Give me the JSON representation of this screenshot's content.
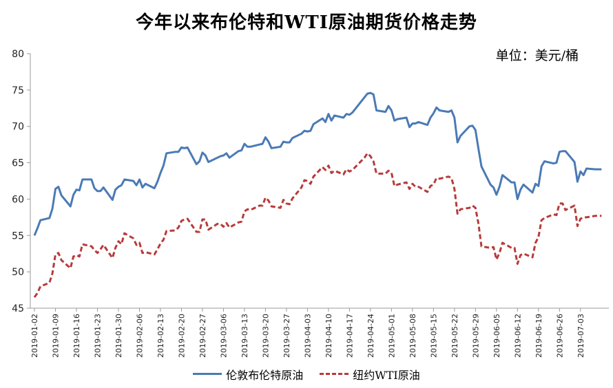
{
  "chart_data": {
    "type": "line",
    "title": "今年以来布伦特和WTI原油期货价格走势",
    "unit": "单位：美元/桶",
    "ylim": [
      45,
      80
    ],
    "yticks": [
      45,
      50,
      55,
      60,
      65,
      70,
      75,
      80
    ],
    "xlim": [
      "2019-01-02",
      "2019-07-12"
    ],
    "xticks": [
      "2019-01-02",
      "2019-01-09",
      "2019-01-16",
      "2019-01-23",
      "2019-01-30",
      "2019-02-06",
      "2019-02-13",
      "2019-02-20",
      "2019-02-27",
      "2019-03-06",
      "2019-03-13",
      "2019-03-20",
      "2019-03-27",
      "2019-04-03",
      "2019-04-10",
      "2019-04-17",
      "2019-04-24",
      "2019-05-01",
      "2019-05-08",
      "2019-05-15",
      "2019-05-22",
      "2019-05-29",
      "2019-06-05",
      "2019-06-12",
      "2019-06-19",
      "2019-06-26",
      "2019-07-03"
    ],
    "grid": false,
    "legend": "bottom",
    "series": [
      {
        "name": "伦敦布伦特原油",
        "color": "#4a7ab5",
        "style": "solid",
        "points": [
          [
            "2019-01-02",
            55.0
          ],
          [
            "2019-01-03",
            56.0
          ],
          [
            "2019-01-04",
            57.1
          ],
          [
            "2019-01-07",
            57.4
          ],
          [
            "2019-01-08",
            58.7
          ],
          [
            "2019-01-09",
            61.4
          ],
          [
            "2019-01-10",
            61.7
          ],
          [
            "2019-01-11",
            60.5
          ],
          [
            "2019-01-14",
            59.0
          ],
          [
            "2019-01-15",
            60.6
          ],
          [
            "2019-01-16",
            61.3
          ],
          [
            "2019-01-17",
            61.2
          ],
          [
            "2019-01-18",
            62.7
          ],
          [
            "2019-01-21",
            62.7
          ],
          [
            "2019-01-22",
            61.5
          ],
          [
            "2019-01-23",
            61.1
          ],
          [
            "2019-01-24",
            61.1
          ],
          [
            "2019-01-25",
            61.6
          ],
          [
            "2019-01-28",
            59.9
          ],
          [
            "2019-01-29",
            61.3
          ],
          [
            "2019-01-30",
            61.7
          ],
          [
            "2019-01-31",
            61.9
          ],
          [
            "2019-02-01",
            62.7
          ],
          [
            "2019-02-04",
            62.5
          ],
          [
            "2019-02-05",
            61.9
          ],
          [
            "2019-02-06",
            62.7
          ],
          [
            "2019-02-07",
            61.6
          ],
          [
            "2019-02-08",
            62.1
          ],
          [
            "2019-02-11",
            61.5
          ],
          [
            "2019-02-12",
            62.4
          ],
          [
            "2019-02-13",
            63.6
          ],
          [
            "2019-02-14",
            64.6
          ],
          [
            "2019-02-15",
            66.3
          ],
          [
            "2019-02-18",
            66.5
          ],
          [
            "2019-02-19",
            66.5
          ],
          [
            "2019-02-20",
            67.1
          ],
          [
            "2019-02-21",
            67.0
          ],
          [
            "2019-02-22",
            67.1
          ],
          [
            "2019-02-25",
            64.8
          ],
          [
            "2019-02-26",
            65.2
          ],
          [
            "2019-02-27",
            66.4
          ],
          [
            "2019-02-28",
            66.0
          ],
          [
            "2019-03-01",
            65.1
          ],
          [
            "2019-03-04",
            65.7
          ],
          [
            "2019-03-05",
            65.9
          ],
          [
            "2019-03-06",
            66.0
          ],
          [
            "2019-03-07",
            66.3
          ],
          [
            "2019-03-08",
            65.7
          ],
          [
            "2019-03-11",
            66.6
          ],
          [
            "2019-03-12",
            66.7
          ],
          [
            "2019-03-13",
            67.6
          ],
          [
            "2019-03-14",
            67.2
          ],
          [
            "2019-03-15",
            67.2
          ],
          [
            "2019-03-18",
            67.5
          ],
          [
            "2019-03-19",
            67.6
          ],
          [
            "2019-03-20",
            68.5
          ],
          [
            "2019-03-21",
            67.9
          ],
          [
            "2019-03-22",
            67.0
          ],
          [
            "2019-03-25",
            67.2
          ],
          [
            "2019-03-26",
            67.9
          ],
          [
            "2019-03-27",
            67.8
          ],
          [
            "2019-03-28",
            67.8
          ],
          [
            "2019-03-29",
            68.4
          ],
          [
            "2019-04-01",
            69.0
          ],
          [
            "2019-04-02",
            69.4
          ],
          [
            "2019-04-03",
            69.3
          ],
          [
            "2019-04-04",
            69.4
          ],
          [
            "2019-04-05",
            70.3
          ],
          [
            "2019-04-08",
            71.1
          ],
          [
            "2019-04-09",
            70.6
          ],
          [
            "2019-04-10",
            71.7
          ],
          [
            "2019-04-11",
            70.8
          ],
          [
            "2019-04-12",
            71.5
          ],
          [
            "2019-04-15",
            71.2
          ],
          [
            "2019-04-16",
            71.7
          ],
          [
            "2019-04-17",
            71.6
          ],
          [
            "2019-04-18",
            71.9
          ],
          [
            "2019-04-22",
            74.0
          ],
          [
            "2019-04-23",
            74.5
          ],
          [
            "2019-04-24",
            74.6
          ],
          [
            "2019-04-25",
            74.4
          ],
          [
            "2019-04-26",
            72.2
          ],
          [
            "2019-04-29",
            72.0
          ],
          [
            "2019-04-30",
            72.8
          ],
          [
            "2019-05-01",
            72.2
          ],
          [
            "2019-05-02",
            70.8
          ],
          [
            "2019-05-03",
            71.0
          ],
          [
            "2019-05-06",
            71.2
          ],
          [
            "2019-05-07",
            69.9
          ],
          [
            "2019-05-08",
            70.4
          ],
          [
            "2019-05-09",
            70.4
          ],
          [
            "2019-05-10",
            70.6
          ],
          [
            "2019-05-13",
            70.2
          ],
          [
            "2019-05-14",
            71.2
          ],
          [
            "2019-05-15",
            71.8
          ],
          [
            "2019-05-16",
            72.6
          ],
          [
            "2019-05-17",
            72.2
          ],
          [
            "2019-05-20",
            72.0
          ],
          [
            "2019-05-21",
            72.2
          ],
          [
            "2019-05-22",
            71.2
          ],
          [
            "2019-05-23",
            67.8
          ],
          [
            "2019-05-24",
            68.7
          ],
          [
            "2019-05-27",
            70.0
          ],
          [
            "2019-05-28",
            70.1
          ],
          [
            "2019-05-29",
            69.5
          ],
          [
            "2019-05-30",
            66.9
          ],
          [
            "2019-05-31",
            64.5
          ],
          [
            "2019-06-03",
            62.0
          ],
          [
            "2019-06-04",
            61.6
          ],
          [
            "2019-06-05",
            60.6
          ],
          [
            "2019-06-06",
            61.7
          ],
          [
            "2019-06-07",
            63.3
          ],
          [
            "2019-06-10",
            62.3
          ],
          [
            "2019-06-11",
            62.3
          ],
          [
            "2019-06-12",
            60.0
          ],
          [
            "2019-06-13",
            61.3
          ],
          [
            "2019-06-14",
            62.0
          ],
          [
            "2019-06-17",
            60.9
          ],
          [
            "2019-06-18",
            62.1
          ],
          [
            "2019-06-19",
            61.8
          ],
          [
            "2019-06-20",
            64.5
          ],
          [
            "2019-06-21",
            65.2
          ],
          [
            "2019-06-24",
            64.9
          ],
          [
            "2019-06-25",
            65.0
          ],
          [
            "2019-06-26",
            66.5
          ],
          [
            "2019-06-27",
            66.6
          ],
          [
            "2019-06-28",
            66.6
          ],
          [
            "2019-07-01",
            65.1
          ],
          [
            "2019-07-02",
            62.4
          ],
          [
            "2019-07-03",
            63.8
          ],
          [
            "2019-07-04",
            63.3
          ],
          [
            "2019-07-05",
            64.2
          ],
          [
            "2019-07-08",
            64.1
          ],
          [
            "2019-07-10",
            64.1
          ]
        ]
      },
      {
        "name": "纽约WTI原油",
        "color": "#b83a3a",
        "style": "dashed",
        "points": [
          [
            "2019-01-02",
            46.5
          ],
          [
            "2019-01-03",
            47.1
          ],
          [
            "2019-01-04",
            48.0
          ],
          [
            "2019-01-07",
            48.5
          ],
          [
            "2019-01-08",
            49.8
          ],
          [
            "2019-01-09",
            52.4
          ],
          [
            "2019-01-10",
            52.6
          ],
          [
            "2019-01-11",
            51.6
          ],
          [
            "2019-01-14",
            50.5
          ],
          [
            "2019-01-15",
            52.1
          ],
          [
            "2019-01-16",
            52.3
          ],
          [
            "2019-01-17",
            52.1
          ],
          [
            "2019-01-18",
            53.8
          ],
          [
            "2019-01-21",
            53.5
          ],
          [
            "2019-01-22",
            53.0
          ],
          [
            "2019-01-23",
            52.6
          ],
          [
            "2019-01-24",
            53.1
          ],
          [
            "2019-01-25",
            53.7
          ],
          [
            "2019-01-28",
            51.9
          ],
          [
            "2019-01-29",
            53.3
          ],
          [
            "2019-01-30",
            54.2
          ],
          [
            "2019-01-31",
            53.8
          ],
          [
            "2019-02-01",
            55.3
          ],
          [
            "2019-02-04",
            54.6
          ],
          [
            "2019-02-05",
            53.7
          ],
          [
            "2019-02-06",
            54.0
          ],
          [
            "2019-02-07",
            52.6
          ],
          [
            "2019-02-08",
            52.7
          ],
          [
            "2019-02-11",
            52.4
          ],
          [
            "2019-02-12",
            53.1
          ],
          [
            "2019-02-13",
            53.9
          ],
          [
            "2019-02-14",
            54.4
          ],
          [
            "2019-02-15",
            55.6
          ],
          [
            "2019-02-18",
            55.7
          ],
          [
            "2019-02-19",
            56.1
          ],
          [
            "2019-02-20",
            57.0
          ],
          [
            "2019-02-21",
            57.2
          ],
          [
            "2019-02-22",
            57.3
          ],
          [
            "2019-02-25",
            55.5
          ],
          [
            "2019-02-26",
            55.5
          ],
          [
            "2019-02-27",
            57.2
          ],
          [
            "2019-02-28",
            57.2
          ],
          [
            "2019-03-01",
            55.8
          ],
          [
            "2019-03-04",
            56.6
          ],
          [
            "2019-03-05",
            56.6
          ],
          [
            "2019-03-06",
            56.2
          ],
          [
            "2019-03-07",
            56.7
          ],
          [
            "2019-03-08",
            56.1
          ],
          [
            "2019-03-11",
            56.8
          ],
          [
            "2019-03-12",
            56.9
          ],
          [
            "2019-03-13",
            58.3
          ],
          [
            "2019-03-14",
            58.6
          ],
          [
            "2019-03-15",
            58.5
          ],
          [
            "2019-03-18",
            59.1
          ],
          [
            "2019-03-19",
            59.1
          ],
          [
            "2019-03-20",
            60.2
          ],
          [
            "2019-03-21",
            59.8
          ],
          [
            "2019-03-22",
            59.0
          ],
          [
            "2019-03-25",
            58.8
          ],
          [
            "2019-03-26",
            59.9
          ],
          [
            "2019-03-27",
            59.4
          ],
          [
            "2019-03-28",
            59.3
          ],
          [
            "2019-03-29",
            60.1
          ],
          [
            "2019-04-01",
            61.6
          ],
          [
            "2019-04-02",
            62.6
          ],
          [
            "2019-04-03",
            62.5
          ],
          [
            "2019-04-04",
            62.1
          ],
          [
            "2019-04-05",
            63.1
          ],
          [
            "2019-04-08",
            64.4
          ],
          [
            "2019-04-09",
            64.0
          ],
          [
            "2019-04-10",
            64.6
          ],
          [
            "2019-04-11",
            63.6
          ],
          [
            "2019-04-12",
            63.9
          ],
          [
            "2019-04-15",
            63.4
          ],
          [
            "2019-04-16",
            64.1
          ],
          [
            "2019-04-17",
            63.8
          ],
          [
            "2019-04-18",
            64.0
          ],
          [
            "2019-04-22",
            65.7
          ],
          [
            "2019-04-23",
            66.3
          ],
          [
            "2019-04-24",
            65.9
          ],
          [
            "2019-04-25",
            65.2
          ],
          [
            "2019-04-26",
            63.5
          ],
          [
            "2019-04-29",
            63.5
          ],
          [
            "2019-04-30",
            63.9
          ],
          [
            "2019-05-01",
            63.6
          ],
          [
            "2019-05-02",
            61.8
          ],
          [
            "2019-05-03",
            62.0
          ],
          [
            "2019-05-06",
            62.3
          ],
          [
            "2019-05-07",
            61.4
          ],
          [
            "2019-05-08",
            62.1
          ],
          [
            "2019-05-09",
            61.7
          ],
          [
            "2019-05-10",
            61.7
          ],
          [
            "2019-05-13",
            61.0
          ],
          [
            "2019-05-14",
            61.8
          ],
          [
            "2019-05-15",
            62.0
          ],
          [
            "2019-05-16",
            62.9
          ],
          [
            "2019-05-17",
            62.8
          ],
          [
            "2019-05-20",
            63.1
          ],
          [
            "2019-05-21",
            62.9
          ],
          [
            "2019-05-22",
            61.4
          ],
          [
            "2019-05-23",
            58.0
          ],
          [
            "2019-05-24",
            58.6
          ],
          [
            "2019-05-27",
            58.8
          ],
          [
            "2019-05-28",
            59.1
          ],
          [
            "2019-05-29",
            58.8
          ],
          [
            "2019-05-30",
            56.6
          ],
          [
            "2019-05-31",
            53.5
          ],
          [
            "2019-06-03",
            53.3
          ],
          [
            "2019-06-04",
            53.4
          ],
          [
            "2019-06-05",
            51.7
          ],
          [
            "2019-06-06",
            52.6
          ],
          [
            "2019-06-07",
            54.0
          ],
          [
            "2019-06-10",
            53.3
          ],
          [
            "2019-06-11",
            53.3
          ],
          [
            "2019-06-12",
            51.1
          ],
          [
            "2019-06-13",
            52.3
          ],
          [
            "2019-06-14",
            52.5
          ],
          [
            "2019-06-17",
            52.0
          ],
          [
            "2019-06-18",
            54.0
          ],
          [
            "2019-06-19",
            54.8
          ],
          [
            "2019-06-20",
            57.1
          ],
          [
            "2019-06-21",
            57.4
          ],
          [
            "2019-06-24",
            57.9
          ],
          [
            "2019-06-25",
            57.8
          ],
          [
            "2019-06-26",
            59.4
          ],
          [
            "2019-06-27",
            59.4
          ],
          [
            "2019-06-28",
            58.5
          ],
          [
            "2019-07-01",
            59.1
          ],
          [
            "2019-07-02",
            56.3
          ],
          [
            "2019-07-03",
            57.3
          ],
          [
            "2019-07-04",
            57.5
          ],
          [
            "2019-07-05",
            57.5
          ],
          [
            "2019-07-08",
            57.7
          ],
          [
            "2019-07-10",
            57.7
          ]
        ]
      }
    ]
  }
}
